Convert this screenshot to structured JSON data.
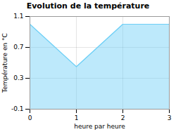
{
  "chart_data": {
    "type": "area",
    "title": "Evolution de la température",
    "xlabel": "heure par heure",
    "ylabel": "Température en °C",
    "x": [
      0,
      1,
      2,
      3
    ],
    "values": [
      1.0,
      0.45,
      1.0,
      1.0
    ],
    "color": "#6dcff6",
    "xlim": [
      0,
      3
    ],
    "ylim": [
      -0.1,
      1.1
    ],
    "xticks": [
      0,
      1,
      2,
      3
    ],
    "yticks": [
      -0.1,
      0.3,
      0.7,
      1.1
    ],
    "grid": true
  }
}
